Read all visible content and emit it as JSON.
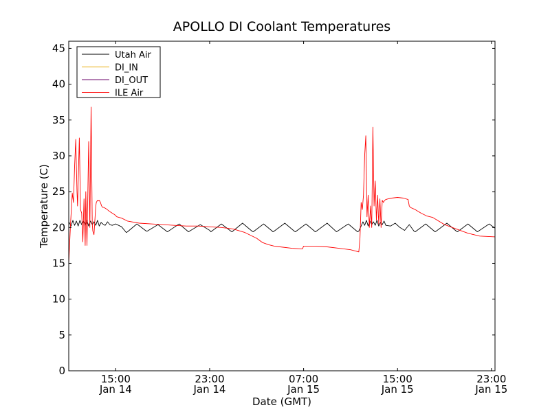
{
  "chart_data": {
    "type": "line",
    "title": "APOLLO DI Coolant Temperatures",
    "xlabel": "Date (GMT)",
    "ylabel": "Temperature (C)",
    "xlim_hours": [
      11.0,
      47.3
    ],
    "ylim": [
      0,
      46
    ],
    "grid": false,
    "legend_position": "top-left",
    "x_ticks": [
      {
        "hour": 15,
        "line1": "15:00",
        "line2": "Jan 14"
      },
      {
        "hour": 23,
        "line1": "23:00",
        "line2": "Jan 14"
      },
      {
        "hour": 31,
        "line1": "07:00",
        "line2": "Jan 15"
      },
      {
        "hour": 39,
        "line1": "15:00",
        "line2": "Jan 15"
      },
      {
        "hour": 47,
        "line1": "23:00",
        "line2": "Jan 15"
      }
    ],
    "y_ticks": [
      0,
      5,
      10,
      15,
      20,
      25,
      30,
      35,
      40,
      45
    ],
    "series": [
      {
        "name": "Utah Air",
        "color": "#000000",
        "x": [
          11.0,
          11.2,
          11.35,
          11.5,
          11.65,
          11.8,
          11.95,
          12.1,
          12.25,
          12.4,
          12.55,
          12.7,
          12.85,
          13.0,
          13.15,
          13.3,
          13.45,
          13.6,
          13.75,
          13.9,
          14.1,
          14.3,
          14.5,
          14.7,
          15.0,
          15.5,
          15.9,
          16.0,
          16.8,
          17.6,
          17.7,
          18.6,
          19.4,
          19.5,
          20.4,
          21.2,
          21.3,
          22.2,
          23.0,
          23.1,
          24.0,
          24.8,
          24.9,
          25.8,
          26.6,
          26.7,
          27.6,
          28.4,
          28.5,
          29.4,
          30.2,
          30.3,
          31.2,
          32.0,
          32.1,
          33.0,
          33.8,
          33.9,
          34.8,
          35.6,
          35.7,
          35.9,
          36.05,
          36.2,
          36.35,
          36.5,
          36.65,
          36.8,
          36.95,
          37.1,
          37.25,
          37.4,
          37.55,
          37.7,
          37.85,
          38.0,
          38.4,
          38.8,
          39.2,
          39.6,
          40.0,
          40.4,
          40.5,
          41.4,
          42.2,
          42.3,
          43.2,
          44.0,
          44.1,
          45.0,
          45.8,
          45.9,
          46.8,
          47.3
        ],
        "values": [
          20.8,
          20.2,
          21.0,
          20.3,
          20.9,
          20.2,
          21.0,
          20.4,
          20.9,
          20.3,
          21.0,
          20.2,
          20.9,
          20.4,
          20.8,
          20.3,
          21.0,
          20.2,
          20.7,
          20.5,
          20.3,
          20.8,
          20.4,
          20.3,
          20.5,
          20.1,
          19.3,
          19.4,
          20.5,
          19.5,
          19.5,
          20.4,
          19.4,
          19.5,
          20.5,
          19.4,
          19.5,
          20.4,
          19.6,
          19.4,
          20.5,
          19.5,
          19.4,
          20.6,
          19.5,
          19.4,
          20.5,
          19.4,
          19.5,
          20.6,
          19.5,
          19.4,
          20.5,
          19.4,
          19.5,
          20.6,
          19.4,
          19.5,
          20.5,
          19.4,
          19.5,
          20.2,
          20.8,
          20.3,
          21.0,
          20.2,
          20.9,
          20.4,
          20.8,
          20.3,
          21.0,
          20.2,
          20.7,
          20.4,
          20.9,
          20.3,
          20.2,
          20.6,
          20.0,
          19.6,
          20.4,
          19.5,
          19.4,
          20.5,
          19.4,
          19.5,
          20.6,
          19.5,
          19.4,
          20.5,
          19.4,
          19.5,
          20.5,
          19.9
        ]
      },
      {
        "name": "DI_IN",
        "color": "#e8a800",
        "x": [],
        "values": []
      },
      {
        "name": "DI_OUT",
        "color": "#6a006a",
        "x": [],
        "values": []
      },
      {
        "name": "ILE Air",
        "color": "#ff0000",
        "x": [
          11.0,
          11.15,
          11.3,
          11.4,
          11.45,
          11.5,
          11.6,
          11.7,
          11.75,
          11.9,
          12.0,
          12.1,
          12.2,
          12.3,
          12.4,
          12.45,
          12.55,
          12.7,
          12.8,
          12.9,
          13.0,
          13.05,
          13.15,
          13.3,
          13.35,
          13.45,
          13.5,
          13.6,
          13.7,
          13.8,
          13.85,
          13.9,
          14.0,
          14.2,
          14.5,
          14.9,
          15.1,
          15.5,
          16.0,
          17.0,
          18.0,
          19.0,
          20.0,
          21.0,
          22.0,
          23.0,
          24.0,
          25.0,
          26.0,
          27.0,
          27.5,
          28.0,
          28.5,
          29.0,
          30.0,
          30.9,
          31.0,
          32.0,
          33.0,
          34.0,
          35.0,
          35.7,
          35.8,
          35.9,
          36.0,
          36.1,
          36.2,
          36.3,
          36.4,
          36.5,
          36.6,
          36.7,
          36.8,
          36.9,
          37.0,
          37.1,
          37.2,
          37.3,
          37.4,
          37.5,
          37.6,
          37.7,
          37.8,
          37.9,
          38.0,
          38.2,
          38.5,
          39.0,
          39.5,
          39.9,
          40.0,
          40.1,
          40.5,
          41.0,
          41.5,
          42.0,
          43.0,
          44.0,
          45.0,
          46.0,
          47.3
        ],
        "values": [
          15.0,
          20.5,
          24.8,
          23.5,
          26.0,
          28.5,
          32.3,
          25.0,
          23.0,
          32.5,
          22.5,
          22.0,
          18.0,
          24.0,
          17.5,
          25.0,
          17.5,
          32.0,
          20.0,
          36.8,
          20.5,
          19.5,
          19.0,
          23.0,
          23.5,
          23.8,
          23.7,
          23.8,
          23.5,
          23.0,
          22.9,
          22.8,
          22.8,
          22.6,
          22.2,
          21.8,
          21.5,
          21.3,
          20.9,
          20.6,
          20.5,
          20.4,
          20.3,
          20.2,
          20.2,
          20.1,
          20.0,
          19.8,
          19.3,
          18.5,
          17.9,
          17.6,
          17.4,
          17.3,
          17.1,
          17.0,
          17.4,
          17.4,
          17.3,
          17.1,
          16.9,
          16.6,
          18.5,
          23.5,
          22.5,
          24.5,
          30.0,
          32.8,
          21.5,
          24.5,
          20.0,
          23.0,
          20.0,
          34.0,
          23.0,
          26.5,
          21.0,
          24.5,
          20.5,
          24.0,
          20.0,
          23.8,
          23.5,
          23.8,
          23.9,
          24.0,
          24.1,
          24.2,
          24.1,
          23.9,
          23.0,
          22.8,
          22.5,
          22.0,
          21.6,
          21.4,
          20.4,
          19.8,
          19.2,
          18.8,
          18.7
        ]
      }
    ]
  }
}
